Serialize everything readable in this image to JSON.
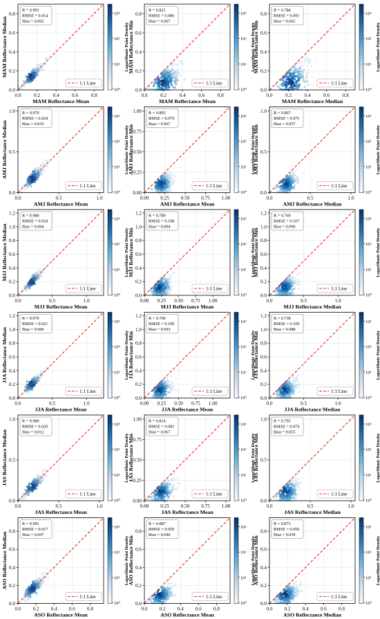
{
  "figure": {
    "colorbar_label": "Logarithmic Point Density",
    "legend_label": "1:1 Line"
  },
  "chart_data": [
    {
      "type": "scatter",
      "row": 0,
      "col": 0,
      "xlabel": "MAM Reflectance Mean",
      "ylabel": "MAM Reflectance Median",
      "xlim": [
        0,
        0.9
      ],
      "ylim": [
        0,
        0.9
      ],
      "ticks": [
        0,
        0.2,
        0.4,
        0.6,
        0.8
      ],
      "tick_labels": [
        "0.0",
        "0.2",
        "0.4",
        "0.6",
        "0.8"
      ],
      "stats": {
        "r": "R = 0.991",
        "rmse": "RMSE = 0.014",
        "bias": "Bias = 0.002"
      },
      "cloud": {
        "center": [
          0.14,
          0.14
        ],
        "spread": 0.08,
        "max": 0.45,
        "tightness": 0.015
      },
      "colorbar_ticks": [
        "10⁰",
        "10¹",
        "10²",
        "10³"
      ]
    },
    {
      "type": "scatter",
      "row": 0,
      "col": 1,
      "xlabel": "MAM Reflectance Mean",
      "ylabel": "MAM Reflectance Min",
      "xlim": [
        0,
        0.9
      ],
      "ylim": [
        0,
        0.9
      ],
      "ticks": [
        0,
        0.2,
        0.4,
        0.6,
        0.8
      ],
      "tick_labels": [
        "0.0",
        "0.2",
        "0.4",
        "0.6",
        "0.8"
      ],
      "stats": {
        "r": "R = 0.821",
        "rmse": "RMSE = 0.086",
        "bias": "Bias = 0.067"
      },
      "cloud": {
        "center": [
          0.2,
          0.08
        ],
        "spread": 0.12,
        "max": 0.5,
        "tightness": 0.06
      },
      "colorbar_ticks": [
        "10⁰",
        "10¹",
        "10²",
        "10³"
      ]
    },
    {
      "type": "scatter",
      "row": 0,
      "col": 2,
      "xlabel": "MAM Reflectance Median",
      "ylabel": "MAM Reflectance Min",
      "xlim": [
        0,
        0.9
      ],
      "ylim": [
        0,
        0.9
      ],
      "ticks": [
        0,
        0.2,
        0.4,
        0.6,
        0.8
      ],
      "tick_labels": [
        "0.0",
        "0.2",
        "0.4",
        "0.6",
        "0.8"
      ],
      "stats": {
        "r": "R = 0.784",
        "rmse": "RMSE = 0.091",
        "bias": "Bias = 0.065"
      },
      "cloud": {
        "center": [
          0.22,
          0.08
        ],
        "spread": 0.13,
        "max": 0.5,
        "tightness": 0.07
      },
      "colorbar_ticks": [
        "10⁰",
        "10¹",
        "10²",
        "10³"
      ]
    },
    {
      "type": "scatter",
      "row": 1,
      "col": 0,
      "xlabel": "AMJ Reflectance Mean",
      "ylabel": "AMJ Reflectance Median",
      "xlim": [
        0,
        1.05
      ],
      "ylim": [
        0,
        1.05
      ],
      "ticks": [
        0,
        0.5,
        1.0
      ],
      "tick_labels": [
        "0.0",
        "0.5",
        "1.0"
      ],
      "stats": {
        "r": "R = 0.976",
        "rmse": "RMSE = 0.024",
        "bias": "Bias = 0.010"
      },
      "cloud": {
        "center": [
          0.18,
          0.17
        ],
        "spread": 0.1,
        "max": 0.5,
        "tightness": 0.02
      },
      "colorbar_ticks": [
        "10⁰",
        "10¹",
        "10²",
        "10³"
      ]
    },
    {
      "type": "scatter",
      "row": 1,
      "col": 1,
      "xlabel": "AMJ Reflectance Mean",
      "ylabel": "AMJ Reflectance Min",
      "xlim": [
        0,
        1.05
      ],
      "ylim": [
        0,
        1.05
      ],
      "ticks": [
        0,
        0.25,
        0.5,
        0.75,
        1.0
      ],
      "tick_labels": [
        "0.00",
        "0.25",
        "0.50",
        "0.75",
        "1.00"
      ],
      "stats": {
        "r": "R = 0.893",
        "rmse": "RMSE = 0.079",
        "bias": "Bias = 0.067"
      },
      "cloud": {
        "center": [
          0.2,
          0.11
        ],
        "spread": 0.1,
        "max": 0.5,
        "tightness": 0.05
      },
      "colorbar_ticks": [
        "10⁰",
        "10¹",
        "10²",
        "10³"
      ]
    },
    {
      "type": "scatter",
      "row": 1,
      "col": 2,
      "xlabel": "AMJ Reflectance Median",
      "ylabel": "AMJ Reflectance Min",
      "xlim": [
        0,
        1.05
      ],
      "ylim": [
        0,
        1.05
      ],
      "ticks": [
        0,
        0.5,
        1.0
      ],
      "tick_labels": [
        "0.0",
        "0.5",
        "1.0"
      ],
      "stats": {
        "r": "R = 0.867",
        "rmse": "RMSE = 0.075",
        "bias": "Bias = 0.057"
      },
      "cloud": {
        "center": [
          0.2,
          0.11
        ],
        "spread": 0.1,
        "max": 0.5,
        "tightness": 0.05
      },
      "colorbar_ticks": [
        "10⁰",
        "10¹",
        "10²",
        "10³"
      ]
    },
    {
      "type": "scatter",
      "row": 2,
      "col": 0,
      "xlabel": "MJJ Reflectance Mean",
      "ylabel": "MJJ Reflectance Median",
      "xlim": [
        0,
        1.25
      ],
      "ylim": [
        0,
        1.25
      ],
      "ticks": [
        0,
        0.5,
        1.0
      ],
      "tick_labels": [
        "0.0",
        "0.5",
        "1.0"
      ],
      "yticks": [
        0,
        0.2,
        0.4,
        0.6,
        0.8,
        1.0,
        1.2
      ],
      "ytick_labels": [
        "0.0",
        "0.2",
        "0.4",
        "0.6",
        "0.8",
        "1.0",
        "1.2"
      ],
      "stats": {
        "r": "R = 0.980",
        "rmse": "RMSE = 0.018",
        "bias": "Bias = 0.004"
      },
      "cloud": {
        "center": [
          0.2,
          0.2
        ],
        "spread": 0.1,
        "max": 0.55,
        "tightness": 0.02
      },
      "colorbar_ticks": [
        "10⁰",
        "10¹",
        "10²",
        "10³"
      ]
    },
    {
      "type": "scatter",
      "row": 2,
      "col": 1,
      "xlabel": "MJJ Reflectance Mean",
      "ylabel": "MJJ Reflectance Min",
      "xlim": [
        0,
        1.25
      ],
      "ylim": [
        0,
        1.25
      ],
      "ticks": [
        0,
        0.25,
        0.5,
        0.75,
        1.0
      ],
      "tick_labels": [
        "0.00",
        "0.25",
        "0.50",
        "0.75",
        "1.00"
      ],
      "yticks": [
        0,
        0.2,
        0.4,
        0.6,
        0.8,
        1.0,
        1.2
      ],
      "ytick_labels": [
        "0.0",
        "0.2",
        "0.4",
        "0.6",
        "0.8",
        "1.0",
        "1.2"
      ],
      "stats": {
        "r": "R = 0.789",
        "rmse": "RMSE = 0.108",
        "bias": "Bias = 0.094"
      },
      "cloud": {
        "center": [
          0.22,
          0.12
        ],
        "spread": 0.12,
        "max": 0.55,
        "tightness": 0.07
      },
      "colorbar_ticks": [
        "10⁰",
        "10¹",
        "10²",
        "10³"
      ]
    },
    {
      "type": "scatter",
      "row": 2,
      "col": 2,
      "xlabel": "MJJ Reflectance Median",
      "ylabel": "MJJ Reflectance Min",
      "xlim": [
        0,
        1.25
      ],
      "ylim": [
        0,
        1.25
      ],
      "ticks": [
        0,
        0.5,
        1.0
      ],
      "tick_labels": [
        "0.0",
        "0.5",
        "1.0"
      ],
      "yticks": [
        0,
        0.2,
        0.4,
        0.6,
        0.8,
        1.0,
        1.2
      ],
      "ytick_labels": [
        "0.0",
        "0.2",
        "0.4",
        "0.6",
        "0.8",
        "1.0",
        "1.2"
      ],
      "stats": {
        "r": "R = 0.769",
        "rmse": "RMSE = 0.107",
        "bias": "Bias = 0.090"
      },
      "cloud": {
        "center": [
          0.22,
          0.12
        ],
        "spread": 0.12,
        "max": 0.55,
        "tightness": 0.07
      },
      "colorbar_ticks": [
        "10⁰",
        "10¹",
        "10²",
        "10³"
      ]
    },
    {
      "type": "scatter",
      "row": 3,
      "col": 0,
      "xlabel": "JJA Reflectance Mean",
      "ylabel": "JJA Reflectance Median",
      "xlim": [
        0,
        1.25
      ],
      "ylim": [
        0,
        1.25
      ],
      "ticks": [
        0,
        0.5,
        1.0
      ],
      "tick_labels": [
        "0.0",
        "0.5",
        "1.0"
      ],
      "yticks": [
        0,
        0.2,
        0.4,
        0.6,
        0.8,
        1.0,
        1.2
      ],
      "ytick_labels": [
        "0.0",
        "0.2",
        "0.4",
        "0.6",
        "0.8",
        "1.0",
        "1.2"
      ],
      "stats": {
        "r": "R = 0.979",
        "rmse": "RMSE = 0.021",
        "bias": "Bias = 0.006"
      },
      "cloud": {
        "center": [
          0.2,
          0.2
        ],
        "spread": 0.1,
        "max": 0.55,
        "tightness": 0.02
      },
      "colorbar_ticks": [
        "10⁰",
        "10¹",
        "10²",
        "10³"
      ]
    },
    {
      "type": "scatter",
      "row": 3,
      "col": 1,
      "xlabel": "JJA Reflectance Mean",
      "ylabel": "JJA Reflectance Min",
      "xlim": [
        0,
        1.25
      ],
      "ylim": [
        0,
        1.25
      ],
      "ticks": [
        0,
        0.25,
        0.5,
        0.75,
        1.0
      ],
      "tick_labels": [
        "0.00",
        "0.25",
        "0.50",
        "0.75",
        "1.00"
      ],
      "yticks": [
        0,
        0.2,
        0.4,
        0.6,
        0.8,
        1.0,
        1.2
      ],
      "ytick_labels": [
        "0.0",
        "0.2",
        "0.4",
        "0.6",
        "0.8",
        "1.0",
        "1.2"
      ],
      "stats": {
        "r": "R = 0.769",
        "rmse": "RMSE = 0.109",
        "bias": "Bias = 0.093"
      },
      "cloud": {
        "center": [
          0.22,
          0.12
        ],
        "spread": 0.12,
        "max": 0.55,
        "tightness": 0.07
      },
      "colorbar_ticks": [
        "10⁰",
        "10¹",
        "10²",
        "10³"
      ]
    },
    {
      "type": "scatter",
      "row": 3,
      "col": 2,
      "xlabel": "JJA Reflectance Median",
      "ylabel": "JJA Reflectance Min",
      "xlim": [
        0,
        1.25
      ],
      "ylim": [
        0,
        1.25
      ],
      "ticks": [
        0,
        0.5,
        1.0
      ],
      "tick_labels": [
        "0.0",
        "0.5",
        "1.0"
      ],
      "yticks": [
        0,
        0.2,
        0.4,
        0.6,
        0.8,
        1.0,
        1.2
      ],
      "ytick_labels": [
        "0.0",
        "0.2",
        "0.4",
        "0.6",
        "0.8",
        "1.0",
        "1.2"
      ],
      "stats": {
        "r": "R = 0.738",
        "rmse": "RMSE = 0.109",
        "bias": "Bias = 0.088"
      },
      "cloud": {
        "center": [
          0.22,
          0.12
        ],
        "spread": 0.12,
        "max": 0.55,
        "tightness": 0.07
      },
      "colorbar_ticks": [
        "10⁰",
        "10¹",
        "10²",
        "10³"
      ]
    },
    {
      "type": "scatter",
      "row": 4,
      "col": 0,
      "xlabel": "JAS Reflectance Mean",
      "ylabel": "JAS Reflectance Median",
      "xlim": [
        0,
        1.05
      ],
      "ylim": [
        0,
        1.05
      ],
      "ticks": [
        0,
        0.5,
        1.0
      ],
      "tick_labels": [
        "0.0",
        "0.5",
        "1.0"
      ],
      "stats": {
        "r": "R = 0.980",
        "rmse": "RMSE = 0.020",
        "bias": "Bias = 0.012"
      },
      "cloud": {
        "center": [
          0.18,
          0.17
        ],
        "spread": 0.1,
        "max": 0.5,
        "tightness": 0.02
      },
      "colorbar_ticks": [
        "10⁰",
        "10¹",
        "10²",
        "10³"
      ]
    },
    {
      "type": "scatter",
      "row": 4,
      "col": 1,
      "xlabel": "JAS Reflectance Mean",
      "ylabel": "JAS Reflectance Min",
      "xlim": [
        0,
        1.05
      ],
      "ylim": [
        0,
        1.05
      ],
      "ticks": [
        0,
        0.25,
        0.5,
        0.75,
        1.0
      ],
      "tick_labels": [
        "0.00",
        "0.25",
        "0.50",
        "0.75",
        "1.00"
      ],
      "stats": {
        "r": "R = 0.814",
        "rmse": "RMSE = 0.081",
        "bias": "Bias = 0.067"
      },
      "cloud": {
        "center": [
          0.2,
          0.11
        ],
        "spread": 0.11,
        "max": 0.5,
        "tightness": 0.06
      },
      "colorbar_ticks": [
        "10⁰",
        "10¹",
        "10²",
        "10³"
      ]
    },
    {
      "type": "scatter",
      "row": 4,
      "col": 2,
      "xlabel": "JAS Reflectance Median",
      "ylabel": "JAS Reflectance Min",
      "xlim": [
        0,
        1.05
      ],
      "ylim": [
        0,
        1.05
      ],
      "ticks": [
        0,
        0.5,
        1.0
      ],
      "tick_labels": [
        "0.0",
        "0.5",
        "1.0"
      ],
      "stats": {
        "r": "R = 0.795",
        "rmse": "RMSE = 0.074",
        "bias": "Bias = 0.055"
      },
      "cloud": {
        "center": [
          0.2,
          0.11
        ],
        "spread": 0.11,
        "max": 0.5,
        "tightness": 0.06
      },
      "colorbar_ticks": [
        "10⁰",
        "10¹",
        "10²",
        "10³"
      ]
    },
    {
      "type": "scatter",
      "row": 5,
      "col": 0,
      "xlabel": "ASO Reflectance Mean",
      "ylabel": "ASO Reflectance Median",
      "xlim": [
        0,
        0.95
      ],
      "ylim": [
        0,
        0.95
      ],
      "ticks": [
        0,
        0.2,
        0.4,
        0.6,
        0.8
      ],
      "tick_labels": [
        "0.0",
        "0.2",
        "0.4",
        "0.6",
        "0.8"
      ],
      "stats": {
        "r": "R = 0.981",
        "rmse": "RMSE = 0.017",
        "bias": "Bias = 0.007"
      },
      "cloud": {
        "center": [
          0.16,
          0.16
        ],
        "spread": 0.09,
        "max": 0.5,
        "tightness": 0.02
      },
      "colorbar_ticks": [
        "10⁰",
        "10¹",
        "10²",
        "10³"
      ]
    },
    {
      "type": "scatter",
      "row": 5,
      "col": 1,
      "xlabel": "ASO Reflectance Mean",
      "ylabel": "ASO Reflectance Min",
      "xlim": [
        0,
        0.95
      ],
      "ylim": [
        0,
        0.95
      ],
      "ticks": [
        0,
        0.2,
        0.4,
        0.6,
        0.8
      ],
      "tick_labels": [
        "0.0",
        "0.2",
        "0.4",
        "0.6",
        "0.8"
      ],
      "stats": {
        "r": "R = 0.887",
        "rmse": "RMSE = 0.059",
        "bias": "Bias = 0.046"
      },
      "cloud": {
        "center": [
          0.17,
          0.1
        ],
        "spread": 0.1,
        "max": 0.5,
        "tightness": 0.04
      },
      "colorbar_ticks": [
        "10⁰",
        "10¹",
        "10²",
        "10³"
      ]
    },
    {
      "type": "scatter",
      "row": 5,
      "col": 2,
      "xlabel": "ASO Reflectance Median",
      "ylabel": "ASO Reflectance Min",
      "xlim": [
        0,
        0.95
      ],
      "ylim": [
        0,
        0.95
      ],
      "ticks": [
        0,
        0.2,
        0.4,
        0.6,
        0.8
      ],
      "tick_labels": [
        "0.0",
        "0.2",
        "0.4",
        "0.6",
        "0.8"
      ],
      "stats": {
        "r": "R = 0.873",
        "rmse": "RMSE = 0.050",
        "bias": "Bias = 0.039"
      },
      "cloud": {
        "center": [
          0.17,
          0.1
        ],
        "spread": 0.1,
        "max": 0.5,
        "tightness": 0.04
      },
      "colorbar_ticks": [
        "10⁰",
        "10¹",
        "10²",
        "10³"
      ]
    }
  ]
}
